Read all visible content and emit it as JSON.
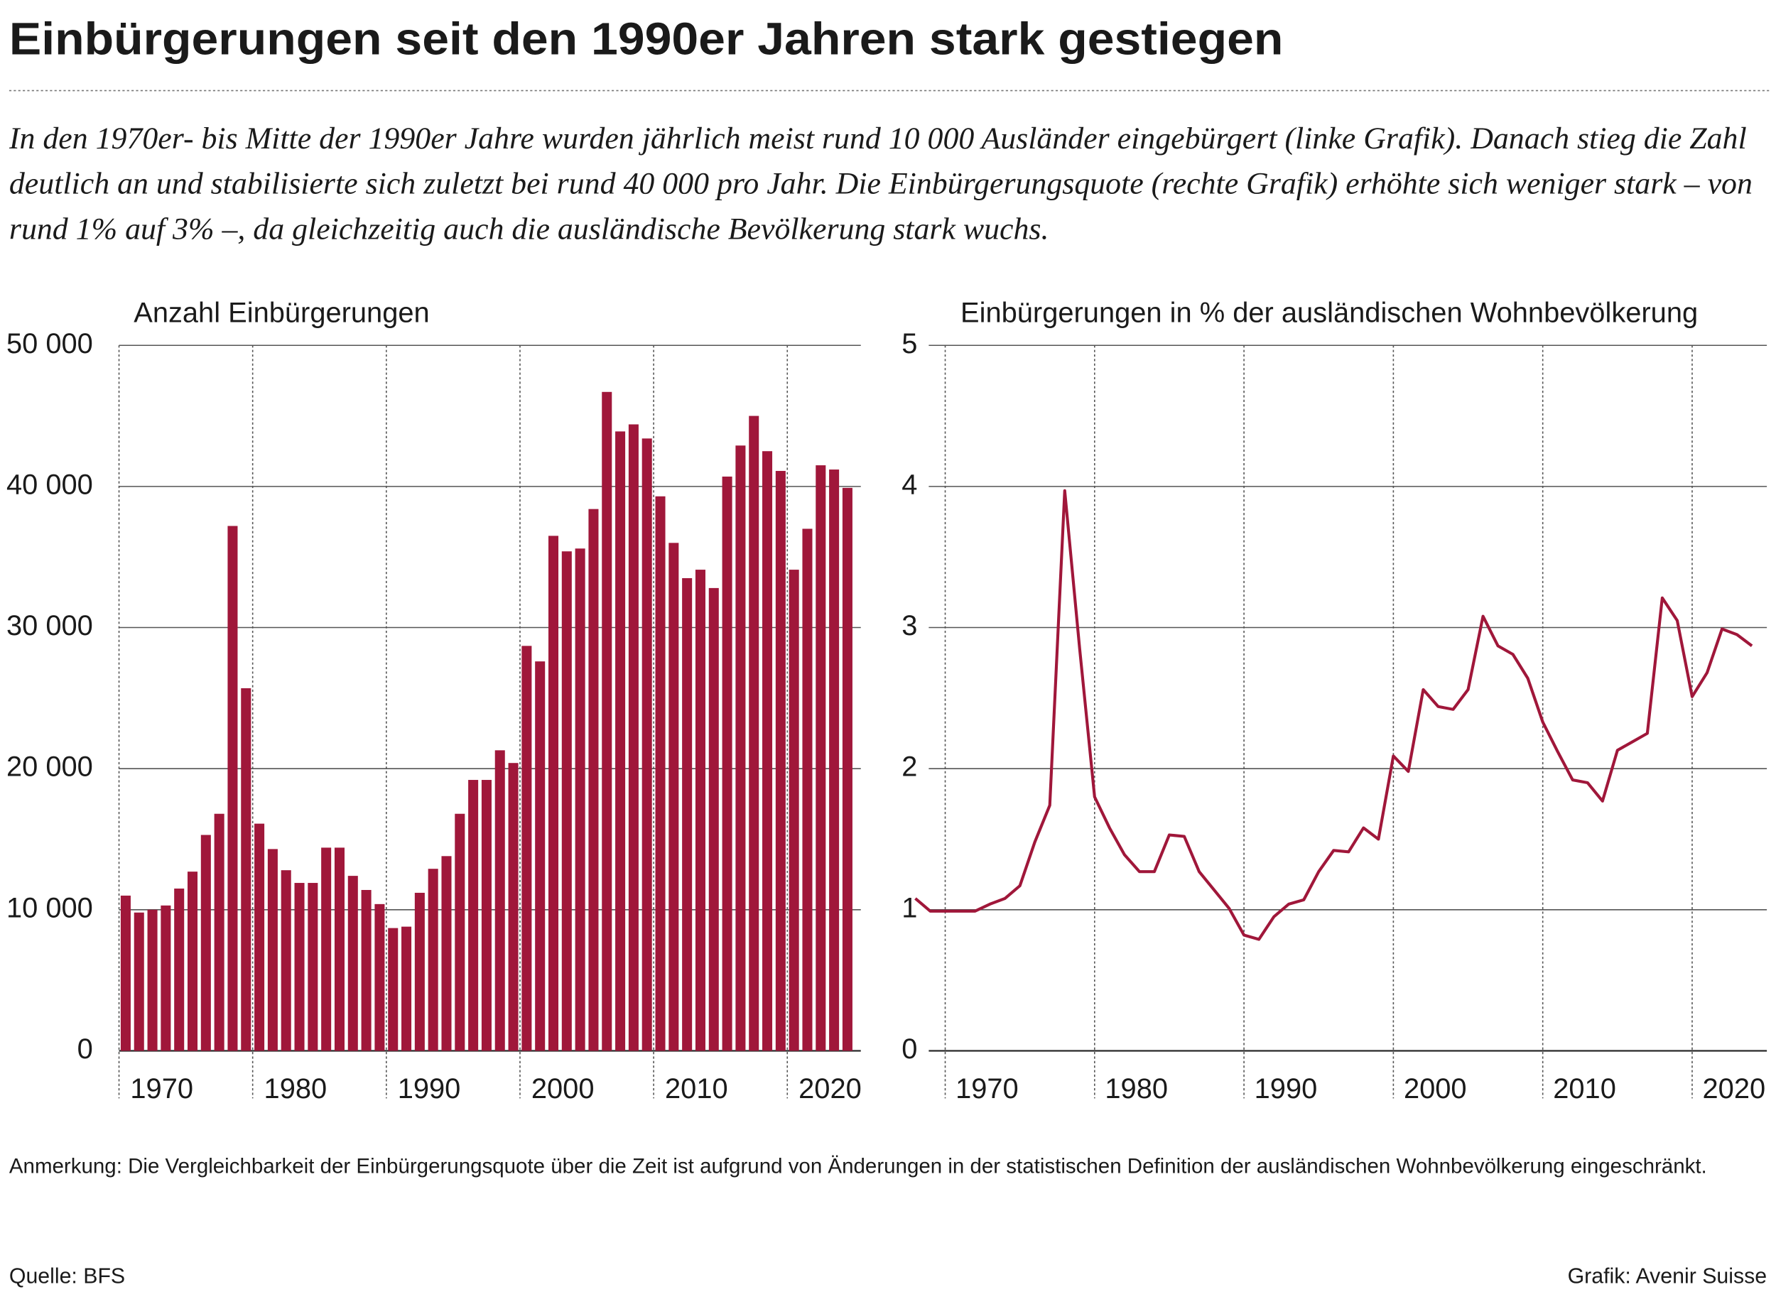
{
  "title": "Einbürgerungen seit den 1990er Jahren stark gestiegen",
  "subtitle": "In den 1970er- bis Mitte der 1990er Jahre wurden jährlich meist rund 10 000 Ausländer eingebürgert (linke Grafik). Danach stieg die Zahl deutlich an und stabilisierte sich zuletzt bei rund 40 000 pro Jahr. Die Einbürgerungsquote (rechte Grafik) erhöhte sich weniger stark – von rund 1% auf 3% –, da gleichzeitig auch die ausländische Bevölkerung stark wuchs.",
  "note": "Anmerkung: Die Vergleichbarkeit der Einbürgerungsquote über die Zeit ist aufgrund von Änderungen in der statistischen Definition der ausländischen Wohnbevölkerung eingeschränkt.",
  "source": "Quelle: BFS",
  "credit": "Grafik: Avenir Suisse",
  "chart_data": [
    {
      "type": "bar",
      "title": "Anzahl Einbürgerungen",
      "color": "#a0173a",
      "x": [
        1970,
        1971,
        1972,
        1973,
        1974,
        1975,
        1976,
        1977,
        1978,
        1979,
        1980,
        1981,
        1982,
        1983,
        1984,
        1985,
        1986,
        1987,
        1988,
        1989,
        1990,
        1991,
        1992,
        1993,
        1994,
        1995,
        1996,
        1997,
        1998,
        1999,
        2000,
        2001,
        2002,
        2003,
        2004,
        2005,
        2006,
        2007,
        2008,
        2009,
        2010,
        2011,
        2012,
        2013,
        2014,
        2015,
        2016,
        2017,
        2018,
        2019,
        2020,
        2021,
        2022,
        2023,
        2024
      ],
      "values": [
        11000,
        9800,
        10000,
        10300,
        11500,
        12700,
        15300,
        16800,
        37200,
        25700,
        16100,
        14300,
        12800,
        11900,
        11900,
        14400,
        14400,
        12400,
        11400,
        10400,
        8700,
        8800,
        11200,
        12900,
        13800,
        16800,
        19200,
        19200,
        21300,
        20400,
        28700,
        27600,
        36500,
        35400,
        35600,
        38400,
        46700,
        43900,
        44400,
        43400,
        39300,
        36000,
        33500,
        34100,
        32800,
        40700,
        42900,
        45000,
        42500,
        41100,
        34100,
        37000,
        41500,
        41200,
        39900
      ],
      "xlim": [
        1970,
        2025.5
      ],
      "xticks": [
        1970,
        1980,
        1990,
        2000,
        2010,
        2020
      ],
      "ylim": [
        0,
        50000
      ],
      "yticks": [
        0,
        {
          "value": 10000,
          "label": "10 000"
        },
        {
          "value": 20000,
          "label": "20 000"
        },
        {
          "value": 30000,
          "label": "30 000"
        },
        {
          "value": 40000,
          "label": "40 000"
        },
        {
          "value": 50000,
          "label": "50 000"
        }
      ],
      "grid": true
    },
    {
      "type": "line",
      "title": "Einbürgerungen in % der ausländischen Wohnbevölkerung",
      "color": "#a0173a",
      "x": [
        1968,
        1969,
        1970,
        1971,
        1972,
        1973,
        1974,
        1975,
        1976,
        1977,
        1978,
        1979,
        1980,
        1981,
        1982,
        1983,
        1984,
        1985,
        1986,
        1987,
        1988,
        1989,
        1990,
        1991,
        1992,
        1993,
        1994,
        1995,
        1996,
        1997,
        1998,
        1999,
        2000,
        2001,
        2002,
        2003,
        2004,
        2005,
        2006,
        2007,
        2008,
        2009,
        2010,
        2011,
        2012,
        2013,
        2014,
        2015,
        2016,
        2017,
        2018,
        2019,
        2020,
        2021,
        2022,
        2023,
        2024
      ],
      "values": [
        1.08,
        0.99,
        0.99,
        0.99,
        0.99,
        1.04,
        1.08,
        1.17,
        1.48,
        1.74,
        3.97,
        2.85,
        1.8,
        1.58,
        1.39,
        1.27,
        1.27,
        1.53,
        1.52,
        1.27,
        1.14,
        1.01,
        0.82,
        0.79,
        0.95,
        1.04,
        1.07,
        1.27,
        1.42,
        1.41,
        1.58,
        1.5,
        2.09,
        1.98,
        2.56,
        2.44,
        2.42,
        2.56,
        3.08,
        2.87,
        2.81,
        2.64,
        2.33,
        2.12,
        1.92,
        1.9,
        1.77,
        2.13,
        2.19,
        2.25,
        3.21,
        3.05,
        2.51,
        2.68,
        2.99,
        2.95,
        2.87
      ],
      "xlim": [
        1968.9,
        2025
      ],
      "xticks": [
        1970,
        1980,
        1990,
        2000,
        2010,
        2020
      ],
      "ylim": [
        0,
        5
      ],
      "yticks": [
        0,
        1,
        2,
        3,
        4,
        5
      ],
      "grid": true
    }
  ]
}
